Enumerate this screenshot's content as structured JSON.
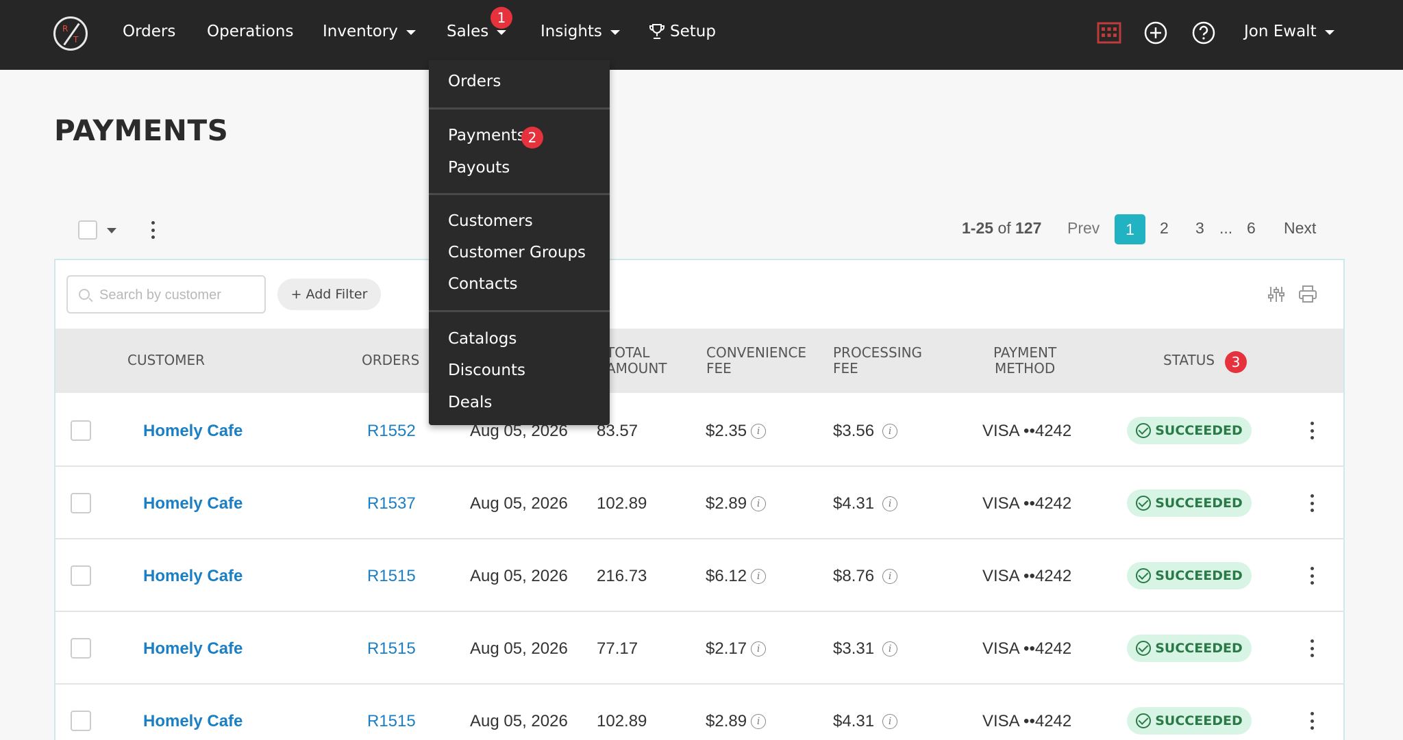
{
  "nav": {
    "items": [
      {
        "label": "Orders"
      },
      {
        "label": "Operations"
      },
      {
        "label": "Inventory"
      },
      {
        "label": "Sales"
      },
      {
        "label": "Insights"
      },
      {
        "label": "Setup"
      }
    ],
    "user": "Jon Ewalt",
    "step_badges": [
      "1",
      "2",
      "3"
    ]
  },
  "sales_menu": {
    "items": [
      "Orders",
      "Payments",
      "Payouts",
      "Customers",
      "Customer Groups",
      "Contacts",
      "Catalogs",
      "Discounts",
      "Deals"
    ]
  },
  "page": {
    "title": "PAYMENTS"
  },
  "pagination": {
    "range_prefix": "1-25",
    "range_of": "of",
    "total": "127",
    "prev": "Prev",
    "pages": [
      "1",
      "2",
      "3",
      "6"
    ],
    "ellipsis": "...",
    "next": "Next",
    "current": "1"
  },
  "toolbar": {
    "search_placeholder": "Search by customer",
    "add_filter": "+ Add Filter"
  },
  "table": {
    "headers": {
      "customer": "CUSTOMER",
      "orders": "ORDERS",
      "total_1": "TOTAL",
      "total_2": "AMOUNT",
      "conv_1": "CONVENIENCE",
      "conv_2": "FEE",
      "proc_1": "PROCESSING",
      "proc_2": "FEE",
      "pay_1": "PAYMENT",
      "pay_2": "METHOD",
      "status": "STATUS"
    },
    "rows": [
      {
        "customer": "Homely Cafe",
        "order": "R1552",
        "date": "Aug 05, 2026",
        "amount": "83.57",
        "conv_fee": "$2.35",
        "proc_fee": "$3.56",
        "method": "VISA ••4242",
        "status": "SUCCEEDED"
      },
      {
        "customer": "Homely Cafe",
        "order": "R1537",
        "date": "Aug 05, 2026",
        "amount": "102.89",
        "conv_fee": "$2.89",
        "proc_fee": "$4.31",
        "method": "VISA ••4242",
        "status": "SUCCEEDED"
      },
      {
        "customer": "Homely Cafe",
        "order": "R1515",
        "date": "Aug 05, 2026",
        "amount": "216.73",
        "conv_fee": "$6.12",
        "proc_fee": "$8.76",
        "method": "VISA ••4242",
        "status": "SUCCEEDED"
      },
      {
        "customer": "Homely Cafe",
        "order": "R1515",
        "date": "Aug 05, 2026",
        "amount": "77.17",
        "conv_fee": "$2.17",
        "proc_fee": "$3.31",
        "method": "VISA ••4242",
        "status": "SUCCEEDED"
      },
      {
        "customer": "Homely Cafe",
        "order": "R1515",
        "date": "Aug 05, 2026",
        "amount": "102.89",
        "conv_fee": "$2.89",
        "proc_fee": "$4.31",
        "method": "VISA ••4242",
        "status": "SUCCEEDED"
      }
    ],
    "info_glyph": "i"
  },
  "icons": {
    "logo": "restaurant-logo-icon",
    "calendar": "calendar-grid-icon",
    "add": "plus-circle-icon",
    "help": "question-circle-icon",
    "trophy": "trophy-icon",
    "columns": "sliders-icon",
    "print": "printer-icon"
  },
  "colors": {
    "nav_bg": "#262626",
    "accent": "#22b3c3",
    "link": "#1a7fc4",
    "badge": "#e6323c",
    "success_bg": "#d8f4e4",
    "success_text": "#2a7a48"
  }
}
